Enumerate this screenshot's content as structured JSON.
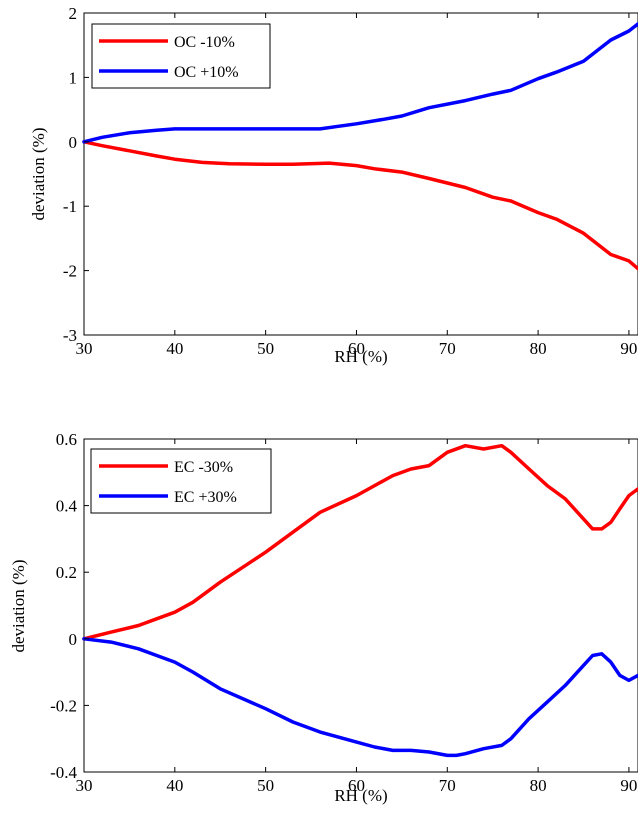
{
  "chart_data": [
    {
      "type": "line",
      "xlabel": "RH (%)",
      "ylabel": "deviation (%)",
      "xlim": [
        30,
        91
      ],
      "ylim": [
        -3,
        2
      ],
      "xticks": [
        30,
        40,
        50,
        60,
        70,
        80,
        90
      ],
      "yticks": [
        -3,
        -2,
        -1,
        0,
        1,
        2
      ],
      "grid": false,
      "legend_position": "top-left",
      "series": [
        {
          "name": "OC -10%",
          "color": "#ff0000",
          "x": [
            30,
            32,
            35,
            38,
            40,
            43,
            46,
            50,
            53,
            57,
            60,
            62,
            65,
            68,
            72,
            75,
            77,
            80,
            82,
            85,
            88,
            90,
            91
          ],
          "y": [
            0,
            -0.06,
            -0.14,
            -0.22,
            -0.27,
            -0.32,
            -0.34,
            -0.35,
            -0.35,
            -0.33,
            -0.37,
            -0.42,
            -0.47,
            -0.57,
            -0.71,
            -0.86,
            -0.92,
            -1.1,
            -1.2,
            -1.42,
            -1.75,
            -1.85,
            -1.97
          ]
        },
        {
          "name": "OC +10%",
          "color": "#0000ff",
          "x": [
            30,
            32,
            35,
            38,
            40,
            43,
            46,
            50,
            53,
            56,
            58,
            60,
            63,
            65,
            68,
            72,
            75,
            77,
            80,
            82,
            85,
            88,
            90,
            91
          ],
          "y": [
            0,
            0.07,
            0.14,
            0.18,
            0.2,
            0.2,
            0.2,
            0.2,
            0.2,
            0.2,
            0.24,
            0.28,
            0.35,
            0.4,
            0.53,
            0.64,
            0.74,
            0.8,
            0.98,
            1.08,
            1.25,
            1.58,
            1.72,
            1.83
          ]
        }
      ]
    },
    {
      "type": "line",
      "xlabel": "RH (%)",
      "ylabel": "deviation (%)",
      "xlim": [
        30,
        91
      ],
      "ylim": [
        -0.4,
        0.6
      ],
      "xticks": [
        30,
        40,
        50,
        60,
        70,
        80,
        90
      ],
      "yticks": [
        -0.4,
        -0.2,
        0,
        0.2,
        0.4,
        0.6
      ],
      "ytick_labels": [
        "-0.4",
        "-0.2",
        "0",
        "0.2",
        "0.4",
        "0.6"
      ],
      "grid": false,
      "legend_position": "top-left",
      "series": [
        {
          "name": "EC -30%",
          "color": "#ff0000",
          "x": [
            30,
            33,
            36,
            38,
            40,
            42,
            45,
            50,
            53,
            56,
            60,
            62,
            64,
            66,
            68,
            70,
            72,
            74,
            76,
            77,
            79,
            81,
            83,
            85,
            86,
            87,
            88,
            89,
            90,
            91
          ],
          "y": [
            0,
            0.02,
            0.04,
            0.06,
            0.08,
            0.11,
            0.17,
            0.26,
            0.32,
            0.38,
            0.43,
            0.46,
            0.49,
            0.51,
            0.52,
            0.56,
            0.58,
            0.57,
            0.58,
            0.56,
            0.51,
            0.46,
            0.42,
            0.36,
            0.33,
            0.33,
            0.35,
            0.39,
            0.43,
            0.45
          ]
        },
        {
          "name": "EC +30%",
          "color": "#0000ff",
          "x": [
            30,
            33,
            36,
            38,
            40,
            42,
            45,
            50,
            53,
            56,
            60,
            62,
            64,
            66,
            68,
            70,
            71,
            72,
            74,
            76,
            77,
            79,
            81,
            83,
            85,
            86,
            87,
            88,
            89,
            90,
            91
          ],
          "y": [
            0,
            -0.01,
            -0.03,
            -0.05,
            -0.07,
            -0.1,
            -0.15,
            -0.21,
            -0.25,
            -0.28,
            -0.31,
            -0.325,
            -0.335,
            -0.335,
            -0.34,
            -0.35,
            -0.35,
            -0.345,
            -0.33,
            -0.32,
            -0.3,
            -0.24,
            -0.19,
            -0.14,
            -0.08,
            -0.05,
            -0.045,
            -0.07,
            -0.11,
            -0.125,
            -0.11
          ]
        }
      ]
    }
  ]
}
